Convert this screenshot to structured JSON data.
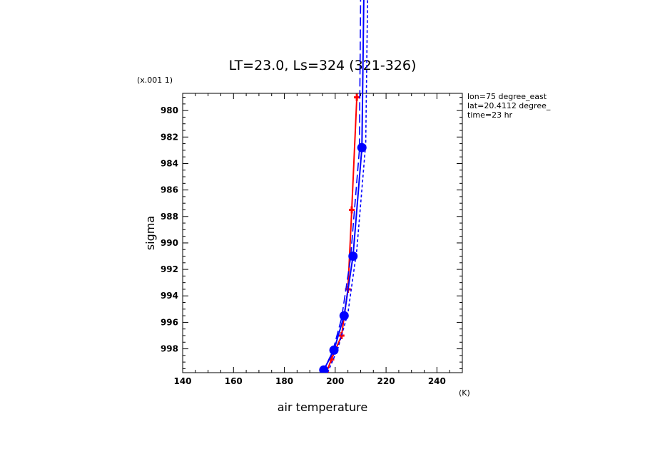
{
  "chart_data": {
    "type": "line",
    "title": "LT=23.0, Ls=324 (321-326)",
    "xlabel": "air temperature",
    "ylabel": "sigma",
    "x_unit": "(K)",
    "y_unit": "(x.001 1)",
    "xlim": [
      140,
      250
    ],
    "ylim": [
      999.8,
      978.7
    ],
    "xticks": [
      140,
      160,
      180,
      200,
      220,
      240
    ],
    "yticks": [
      980,
      982,
      984,
      986,
      988,
      990,
      992,
      994,
      996,
      998
    ],
    "grid": false,
    "annotations": [
      "lon=75 degree_east",
      "lat=20.4112 degree_",
      "time=23 hr"
    ],
    "series": [
      {
        "color": "#ff0000",
        "style": "solid",
        "marker": "plus",
        "points": [
          [
            196.5,
            999.8
          ],
          [
            198.5,
            998.8
          ],
          [
            202.5,
            997.0
          ],
          [
            205.0,
            993.5
          ],
          [
            206.5,
            987.5
          ],
          [
            208.5,
            979.0
          ]
        ]
      },
      {
        "color": "#0000ff",
        "style": "solid",
        "marker": "circle",
        "points": [
          [
            195.5,
            999.6
          ],
          [
            199.5,
            998.1
          ],
          [
            203.5,
            995.5
          ],
          [
            207.0,
            991.0
          ],
          [
            210.5,
            982.8
          ],
          [
            212.0,
            960.0
          ]
        ]
      },
      {
        "color": "#0000ff",
        "style": "dashed",
        "marker": "none",
        "points": [
          [
            197.0,
            999.8
          ],
          [
            201.0,
            998.0
          ],
          [
            205.0,
            995.3
          ],
          [
            208.5,
            990.5
          ],
          [
            212.0,
            982.5
          ],
          [
            213.5,
            960.0
          ]
        ]
      },
      {
        "color": "#0000ff",
        "style": "longdash",
        "marker": "none",
        "points": [
          [
            195.0,
            999.8
          ],
          [
            199.0,
            998.2
          ],
          [
            202.5,
            995.7
          ],
          [
            206.0,
            991.2
          ],
          [
            209.5,
            983.0
          ],
          [
            210.5,
            960.0
          ]
        ]
      }
    ]
  }
}
